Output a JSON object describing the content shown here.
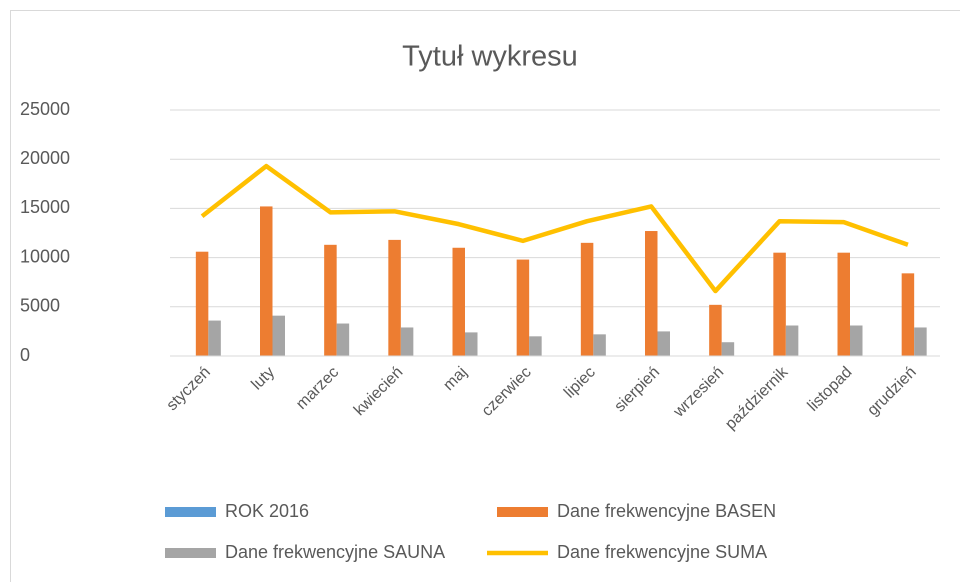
{
  "chart_data": {
    "type": "bar",
    "title": "Tytuł wykresu",
    "categories": [
      "styczeń",
      "luty",
      "marzec",
      "kwiecień",
      "maj",
      "czerwiec",
      "lipiec",
      "sierpień",
      "wrzesień",
      "październik",
      "listopad",
      "grudzień"
    ],
    "series": [
      {
        "name": "ROK 2016",
        "color": "#5b9bd5",
        "type": "bar",
        "values": [
          0,
          0,
          0,
          0,
          0,
          0,
          0,
          0,
          0,
          0,
          0,
          0
        ]
      },
      {
        "name": "Dane frekwencyjne BASEN",
        "color": "#ed7d31",
        "type": "bar",
        "values": [
          10600,
          15200,
          11300,
          11800,
          11000,
          9800,
          11500,
          12700,
          5200,
          10500,
          10500,
          8400
        ]
      },
      {
        "name": "Dane frekwencyjne SAUNA",
        "color": "#a5a5a5",
        "type": "bar",
        "values": [
          3600,
          4100,
          3300,
          2900,
          2400,
          2000,
          2200,
          2500,
          1400,
          3100,
          3100,
          2900
        ]
      },
      {
        "name": "Dane frekwencyjne SUMA",
        "color": "#ffc000",
        "type": "line",
        "values": [
          14200,
          19300,
          14600,
          14700,
          13400,
          11700,
          13700,
          15200,
          6600,
          13700,
          13600,
          11300
        ]
      }
    ],
    "ylim": [
      0,
      25000
    ],
    "yticks": [
      0,
      5000,
      10000,
      15000,
      20000,
      25000
    ],
    "grid": true,
    "legend": "bottom"
  }
}
